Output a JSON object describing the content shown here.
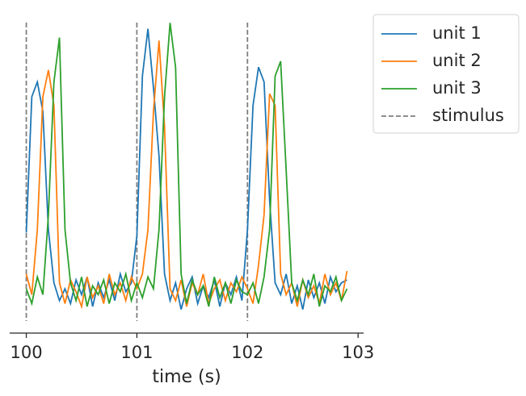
{
  "chart_data": {
    "type": "line",
    "xlabel": "time (s)",
    "x": [
      100,
      100.05,
      100.1,
      100.15,
      100.2,
      100.25,
      100.3,
      100.35,
      100.4,
      100.45,
      100.5,
      100.55,
      100.6,
      100.65,
      100.7,
      100.75,
      100.8,
      100.85,
      100.9,
      100.95,
      101,
      101.05,
      101.1,
      101.15,
      101.2,
      101.25,
      101.3,
      101.35,
      101.4,
      101.45,
      101.5,
      101.55,
      101.6,
      101.65,
      101.7,
      101.75,
      101.8,
      101.85,
      101.9,
      101.95,
      102,
      102.05,
      102.1,
      102.15,
      102.2,
      102.25,
      102.3,
      102.35,
      102.4,
      102.45,
      102.5,
      102.55,
      102.6,
      102.65,
      102.7,
      102.75,
      102.8,
      102.85,
      102.9
    ],
    "series": [
      {
        "name": "unit 1",
        "color": "#1f77b4",
        "values": [
          0.29,
          0.75,
          0.8,
          0.7,
          0.3,
          0.12,
          0.06,
          0.1,
          0.05,
          0.13,
          0.08,
          0.14,
          0.04,
          0.12,
          0.07,
          0.13,
          0.06,
          0.15,
          0.09,
          0.12,
          0.28,
          0.82,
          0.98,
          0.78,
          0.55,
          0.15,
          0.06,
          0.12,
          0.03,
          0.1,
          0.14,
          0.05,
          0.11,
          0.07,
          0.13,
          0.04,
          0.12,
          0.08,
          0.14,
          0.06,
          0.3,
          0.72,
          0.85,
          0.8,
          0.4,
          0.12,
          0.08,
          0.15,
          0.05,
          0.11,
          0.03,
          0.13,
          0.07,
          0.12,
          0.05,
          0.14,
          0.09,
          0.12,
          0.13
        ]
      },
      {
        "name": "unit 2",
        "color": "#ff7f0e",
        "values": [
          0.15,
          0.08,
          0.3,
          0.75,
          0.84,
          0.72,
          0.12,
          0.05,
          0.13,
          0.09,
          0.04,
          0.14,
          0.07,
          0.11,
          0.05,
          0.15,
          0.08,
          0.12,
          0.06,
          0.14,
          0.1,
          0.15,
          0.3,
          0.7,
          0.94,
          0.65,
          0.1,
          0.06,
          0.13,
          0.04,
          0.12,
          0.08,
          0.15,
          0.05,
          0.1,
          0.13,
          0.06,
          0.12,
          0.09,
          0.14,
          0.1,
          0.05,
          0.18,
          0.35,
          0.76,
          0.72,
          0.15,
          0.08,
          0.12,
          0.04,
          0.13,
          0.07,
          0.11,
          0.05,
          0.15,
          0.08,
          0.12,
          0.06,
          0.16
        ]
      },
      {
        "name": "unit 3",
        "color": "#2ca02c",
        "values": [
          0.1,
          0.05,
          0.14,
          0.08,
          0.35,
          0.8,
          0.95,
          0.3,
          0.12,
          0.06,
          0.14,
          0.04,
          0.11,
          0.08,
          0.13,
          0.05,
          0.12,
          0.09,
          0.15,
          0.06,
          0.12,
          0.07,
          0.14,
          0.1,
          0.3,
          0.75,
          1.0,
          0.85,
          0.15,
          0.05,
          0.13,
          0.08,
          0.11,
          0.04,
          0.14,
          0.07,
          0.12,
          0.05,
          0.13,
          0.09,
          0.08,
          0.12,
          0.05,
          0.14,
          0.3,
          0.82,
          0.87,
          0.5,
          0.12,
          0.06,
          0.13,
          0.08,
          0.15,
          0.04,
          0.11,
          0.09,
          0.14,
          0.06,
          0.1
        ]
      }
    ],
    "vlines": {
      "name": "stimulus",
      "color": "#7f7f7f",
      "x": [
        100,
        101,
        102
      ]
    },
    "xlim": [
      99.85,
      103.05
    ],
    "xticks": [
      100,
      101,
      102,
      103
    ],
    "ylim": [
      -0.05,
      1.05
    ],
    "legend": "outside-right"
  }
}
